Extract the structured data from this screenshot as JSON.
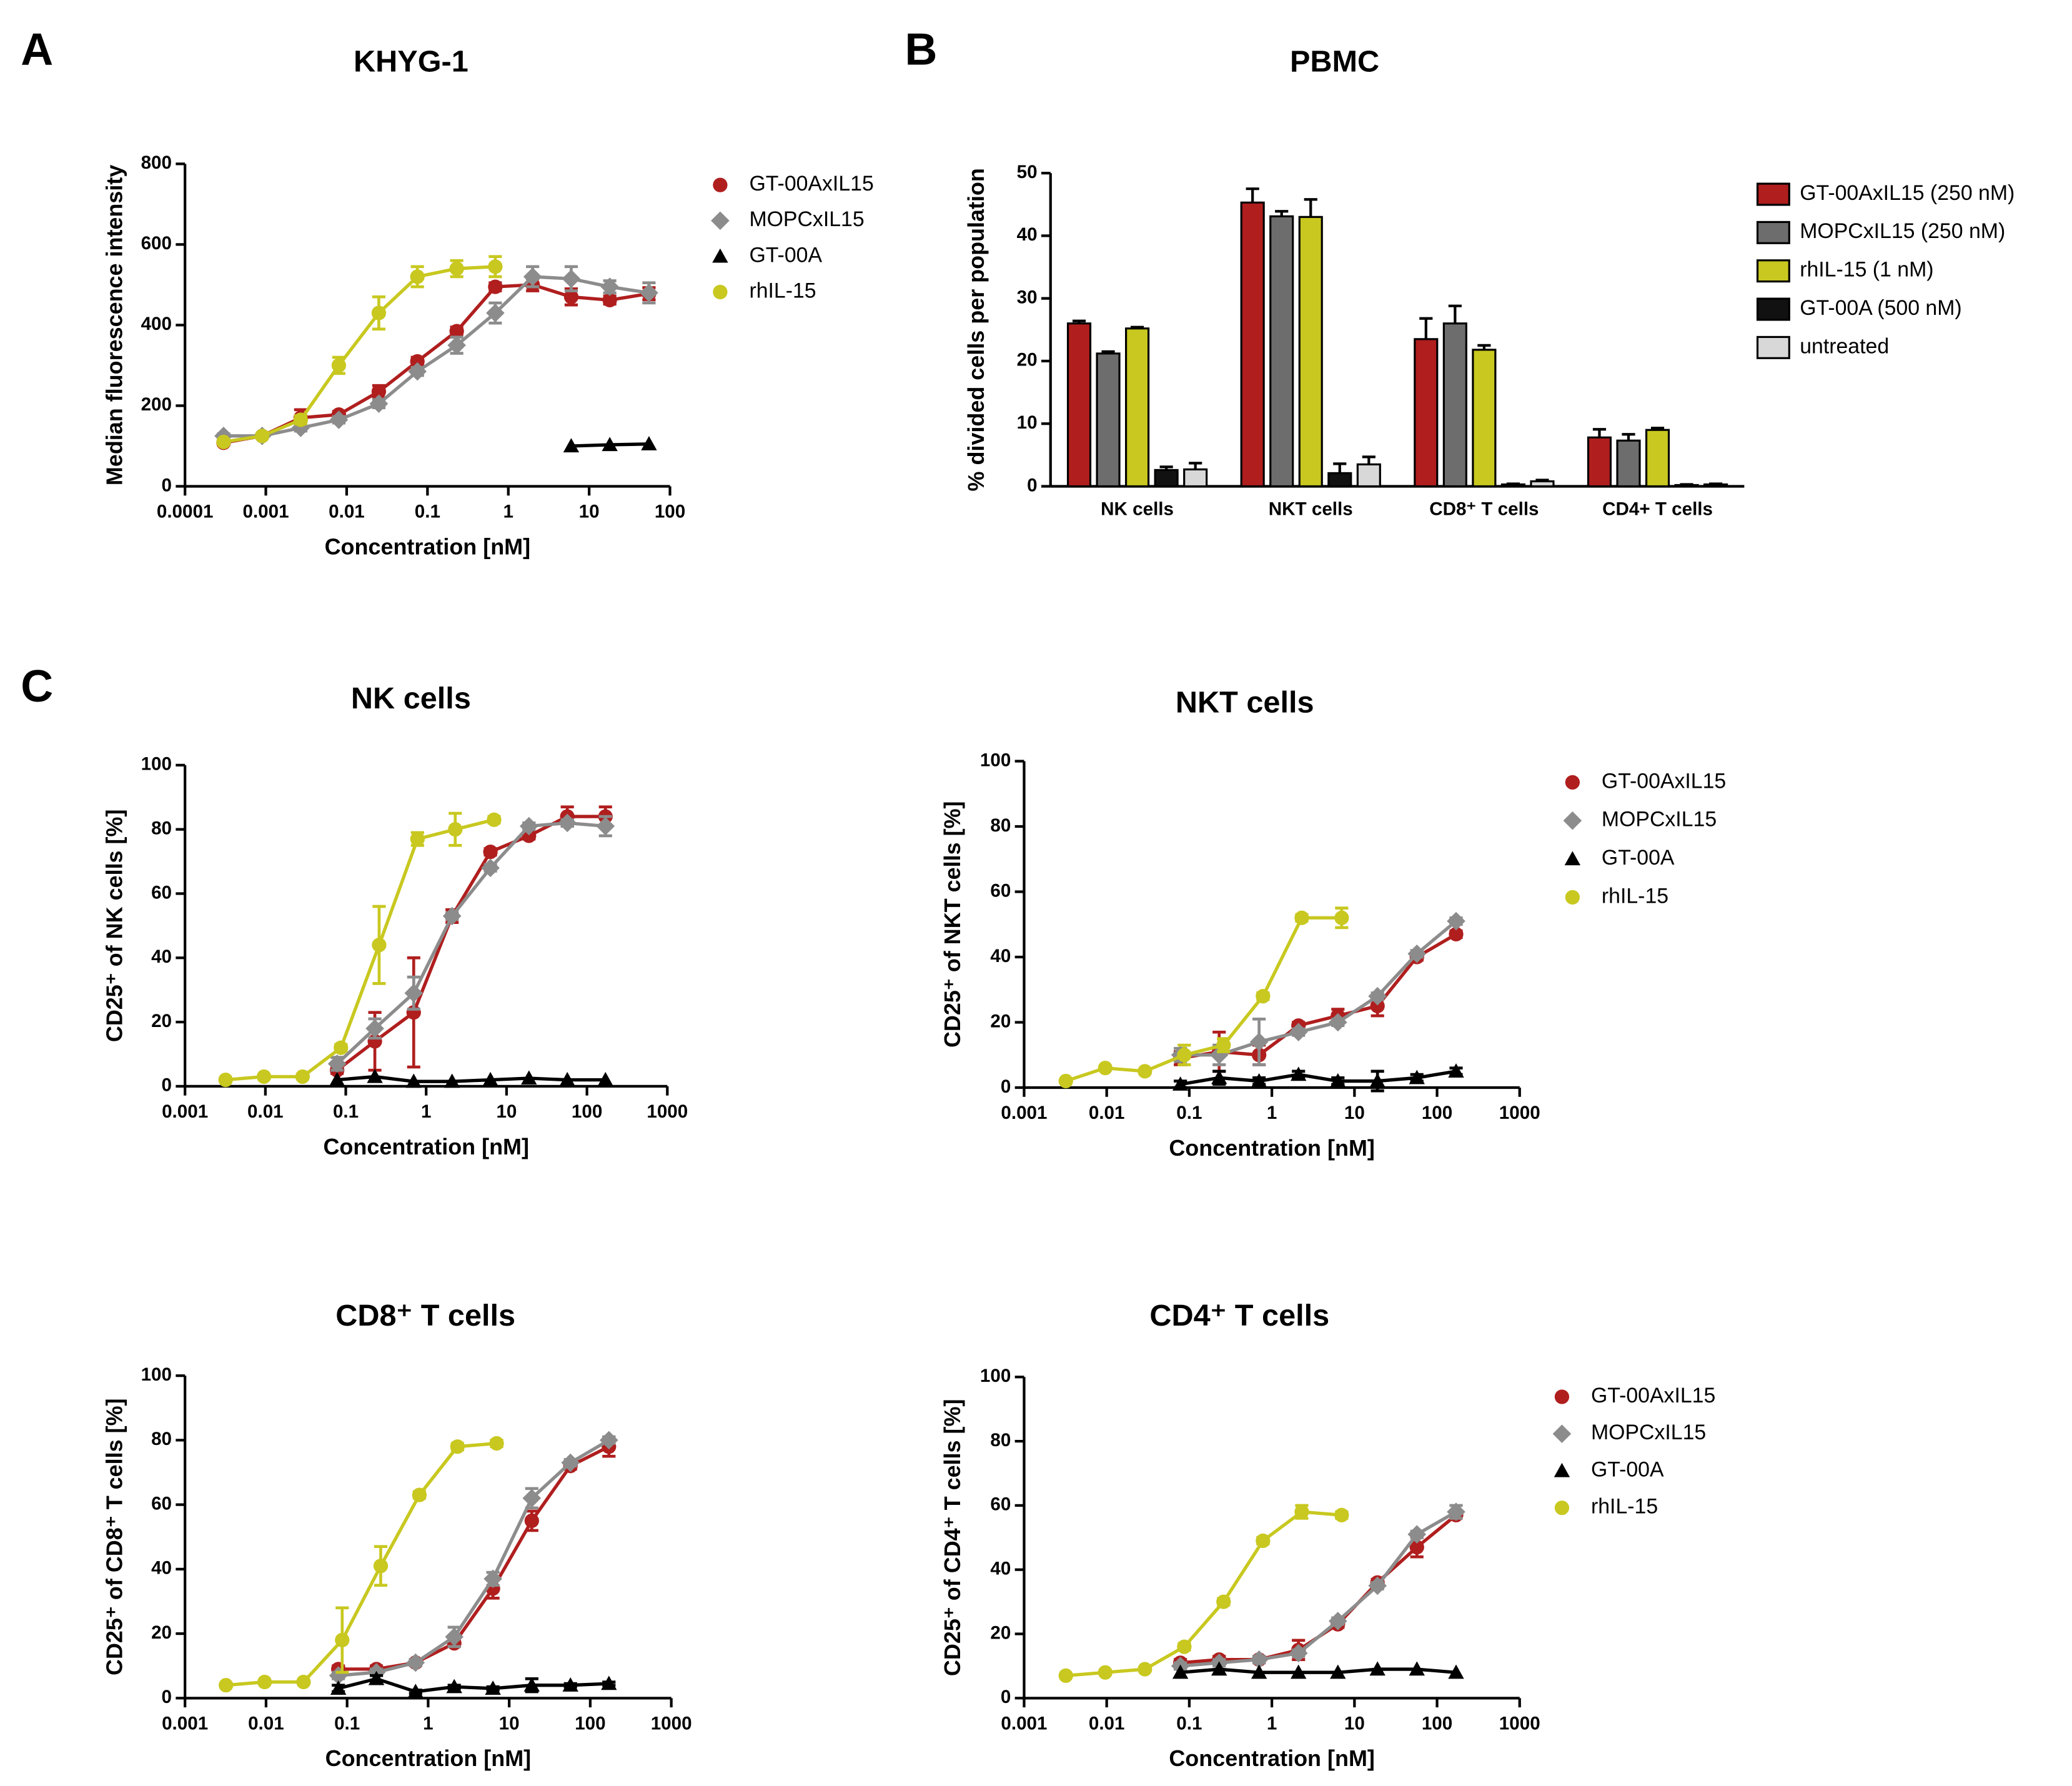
{
  "chart_data": [
    {
      "type": "scatter",
      "panel_label": "A",
      "title": "KHYG-1",
      "x_label": "Concentration [nM]",
      "y_label": "Median fluorescence intensity",
      "xlog": true,
      "xlim": [
        0.0001,
        100
      ],
      "xticks": [
        0.0001,
        0.001,
        0.01,
        0.1,
        1,
        10,
        100
      ],
      "ylim": [
        0,
        800
      ],
      "yticks": [
        0,
        200,
        400,
        600,
        800
      ],
      "legend": "right",
      "series": [
        {
          "name": "GT-00AxIL15",
          "color": "#b01e1e",
          "marker": "circle",
          "x": [
            0.0003,
            0.0009,
            0.0027,
            0.008,
            0.025,
            0.075,
            0.23,
            0.69,
            2,
            6,
            18,
            55
          ],
          "values": [
            108,
            125,
            170,
            178,
            235,
            310,
            385,
            495,
            500,
            470,
            462,
            478
          ],
          "errors": [
            5,
            5,
            20,
            8,
            15,
            10,
            10,
            10,
            15,
            20,
            10,
            15
          ]
        },
        {
          "name": "MOPCxIL15",
          "color": "#8c8c8c",
          "marker": "diamond",
          "x": [
            0.0003,
            0.0009,
            0.0027,
            0.008,
            0.025,
            0.075,
            0.23,
            0.69,
            2,
            6,
            18,
            55
          ],
          "values": [
            125,
            125,
            145,
            165,
            205,
            285,
            350,
            430,
            520,
            515,
            495,
            480
          ],
          "errors": [
            5,
            5,
            8,
            8,
            10,
            10,
            20,
            25,
            25,
            30,
            15,
            25
          ]
        },
        {
          "name": "GT-00A",
          "color": "#000000",
          "marker": "triangle",
          "x": [
            6,
            18,
            55
          ],
          "values": [
            100,
            103,
            105
          ]
        },
        {
          "name": "rhIL-15",
          "color": "#c8c820",
          "marker": "circle",
          "x": [
            0.0003,
            0.0009,
            0.0027,
            0.008,
            0.025,
            0.075,
            0.23,
            0.69
          ],
          "values": [
            110,
            125,
            165,
            300,
            430,
            520,
            540,
            545
          ],
          "errors": [
            5,
            5,
            10,
            20,
            40,
            25,
            20,
            25
          ]
        }
      ]
    },
    {
      "type": "bar",
      "panel_label": "B",
      "title": "PBMC",
      "y_label": "% divided cells per population",
      "categories": [
        "NK cells",
        "NKT cells",
        "CD8⁺ T cells",
        "CD4+ T cells"
      ],
      "ylim": [
        0,
        50
      ],
      "yticks": [
        0,
        10,
        20,
        30,
        40,
        50
      ],
      "legend": "right",
      "series": [
        {
          "name": "GT-00AxIL15 (250 nM)",
          "color": "#b01e1e",
          "values": [
            26,
            45.3,
            23.5,
            7.8
          ],
          "errors": [
            0.4,
            2.2,
            3.3,
            1.3
          ]
        },
        {
          "name": "MOPCxIL15 (250 nM)",
          "color": "#6d6d6d",
          "values": [
            21.2,
            43.1,
            26,
            7.3
          ],
          "errors": [
            0.3,
            0.8,
            2.8,
            1
          ]
        },
        {
          "name": "rhIL-15 (1 nM)",
          "color": "#c8c820",
          "values": [
            25.2,
            43,
            21.8,
            9
          ],
          "errors": [
            0.2,
            2.8,
            0.7,
            0.3
          ]
        },
        {
          "name": "GT-00A (500 nM)",
          "color": "#111111",
          "values": [
            2.6,
            2.1,
            0.3,
            0.2
          ],
          "errors": [
            0.5,
            1.5,
            0.1,
            0.1
          ]
        },
        {
          "name": "untreated",
          "color": "#d8d8d8",
          "values": [
            2.7,
            3.5,
            0.8,
            0.3
          ],
          "errors": [
            1,
            1.2,
            0.2,
            0.1
          ]
        }
      ]
    },
    {
      "type": "scatter",
      "panel_label": "C",
      "title": "NK cells",
      "x_label": "Concentration [nM]",
      "y_label": "CD25⁺ of NK cells [%]",
      "xlog": true,
      "xlim": [
        0.001,
        1000
      ],
      "xticks": [
        0.001,
        0.01,
        0.1,
        1,
        10,
        100,
        1000
      ],
      "ylim": [
        0,
        100
      ],
      "yticks": [
        0,
        20,
        40,
        60,
        80,
        100
      ],
      "series": [
        {
          "name": "GT-00AxIL15",
          "color": "#b01e1e",
          "marker": "circle",
          "x": [
            0.078,
            0.23,
            0.7,
            2.1,
            6.3,
            19,
            57,
            170
          ],
          "values": [
            5,
            14,
            23,
            53,
            73,
            78,
            84,
            84
          ],
          "errors": [
            1,
            9,
            17,
            2,
            1,
            1,
            3,
            3
          ]
        },
        {
          "name": "MOPCxIL15",
          "color": "#8c8c8c",
          "marker": "diamond",
          "x": [
            0.078,
            0.23,
            0.7,
            2.1,
            6.3,
            19,
            57,
            170
          ],
          "values": [
            7,
            18,
            29,
            53,
            68,
            81,
            82,
            81
          ],
          "errors": [
            2,
            3,
            5,
            1,
            1,
            1,
            1,
            3
          ]
        },
        {
          "name": "GT-00A",
          "color": "#000000",
          "marker": "triangle",
          "x": [
            0.078,
            0.23,
            0.7,
            2.1,
            6.3,
            19,
            57,
            170
          ],
          "values": [
            2,
            3,
            1.5,
            1.5,
            2,
            2.5,
            2,
            2
          ]
        },
        {
          "name": "rhIL-15",
          "color": "#c8c820",
          "marker": "circle",
          "x": [
            0.0032,
            0.0096,
            0.029,
            0.087,
            0.26,
            0.78,
            2.3,
            7
          ],
          "values": [
            2,
            3,
            3,
            12,
            44,
            77,
            80,
            83
          ],
          "errors": [
            0.5,
            0.5,
            0.5,
            1,
            12,
            2,
            5,
            1
          ]
        }
      ]
    },
    {
      "type": "scatter",
      "title": "NKT cells",
      "x_label": "Concentration [nM]",
      "y_label": "CD25⁺ of NKT cells [%]",
      "xlog": true,
      "xlim": [
        0.001,
        1000
      ],
      "xticks": [
        0.001,
        0.01,
        0.1,
        1,
        10,
        100,
        1000
      ],
      "ylim": [
        0,
        100
      ],
      "yticks": [
        0,
        20,
        40,
        60,
        80,
        100
      ],
      "legend": "right",
      "series": [
        {
          "name": "GT-00AxIL15",
          "color": "#b01e1e",
          "marker": "circle",
          "x": [
            0.078,
            0.23,
            0.7,
            2.1,
            6.3,
            19,
            57,
            170
          ],
          "values": [
            9,
            11,
            10,
            19,
            22,
            25,
            40,
            47
          ],
          "errors": [
            2,
            6,
            3,
            1,
            2,
            3,
            1,
            1
          ]
        },
        {
          "name": "MOPCxIL15",
          "color": "#8c8c8c",
          "marker": "diamond",
          "x": [
            0.078,
            0.23,
            0.7,
            2.1,
            6.3,
            19,
            57,
            170
          ],
          "values": [
            10,
            10,
            14,
            17,
            20,
            28,
            41,
            51
          ],
          "errors": [
            2,
            3,
            7,
            1,
            1,
            1,
            1,
            1
          ]
        },
        {
          "name": "GT-00A",
          "color": "#000000",
          "marker": "triangle",
          "x": [
            0.078,
            0.23,
            0.7,
            2.1,
            6.3,
            19,
            57,
            170
          ],
          "values": [
            1,
            3,
            2,
            4,
            2,
            2,
            3,
            5
          ],
          "errors": [
            1,
            2,
            1,
            1,
            1,
            3,
            1,
            1
          ]
        },
        {
          "name": "rhIL-15",
          "color": "#c8c820",
          "marker": "circle",
          "x": [
            0.0032,
            0.0096,
            0.029,
            0.087,
            0.26,
            0.78,
            2.3,
            7
          ],
          "values": [
            2,
            6,
            5,
            10,
            13,
            28,
            52,
            52
          ],
          "errors": [
            0.5,
            0.5,
            0.5,
            3,
            2,
            1,
            1,
            3
          ]
        }
      ]
    },
    {
      "type": "scatter",
      "title": "CD8⁺ T cells",
      "x_label": "Concentration [nM]",
      "y_label": "CD25⁺ of CD8⁺ T cells [%]",
      "xlog": true,
      "xlim": [
        0.001,
        1000
      ],
      "xticks": [
        0.001,
        0.01,
        0.1,
        1,
        10,
        100,
        1000
      ],
      "ylim": [
        0,
        100
      ],
      "yticks": [
        0,
        20,
        40,
        60,
        80,
        100
      ],
      "series": [
        {
          "name": "GT-00AxIL15",
          "color": "#b01e1e",
          "marker": "circle",
          "x": [
            0.078,
            0.23,
            0.7,
            2.1,
            6.3,
            19,
            57,
            170
          ],
          "values": [
            9,
            9,
            11,
            17,
            34,
            55,
            72,
            78
          ],
          "errors": [
            1,
            1,
            1,
            1,
            3,
            3,
            1,
            3
          ]
        },
        {
          "name": "MOPCxIL15",
          "color": "#8c8c8c",
          "marker": "diamond",
          "x": [
            0.078,
            0.23,
            0.7,
            2.1,
            6.3,
            19,
            57,
            170
          ],
          "values": [
            7,
            8,
            11,
            19,
            37,
            62,
            73,
            80
          ],
          "errors": [
            1,
            1,
            1,
            3,
            2,
            3,
            1,
            1
          ]
        },
        {
          "name": "GT-00A",
          "color": "#000000",
          "marker": "triangle",
          "x": [
            0.078,
            0.23,
            0.7,
            2.1,
            6.3,
            19,
            57,
            170
          ],
          "values": [
            3,
            6,
            2,
            3.5,
            3,
            4,
            4,
            4.5
          ],
          "errors": [
            1,
            1,
            0.5,
            0.5,
            0.5,
            2,
            0.5,
            0.5
          ]
        },
        {
          "name": "rhIL-15",
          "color": "#c8c820",
          "marker": "circle",
          "x": [
            0.0032,
            0.0096,
            0.029,
            0.087,
            0.26,
            0.78,
            2.3,
            7
          ],
          "values": [
            4,
            5,
            5,
            18,
            41,
            63,
            78,
            79
          ],
          "errors": [
            0.5,
            0.5,
            0.5,
            10,
            6,
            1,
            1,
            1
          ]
        }
      ]
    },
    {
      "type": "scatter",
      "title": "CD4⁺ T cells",
      "x_label": "Concentration [nM]",
      "y_label": "CD25⁺ of CD4⁺ T cells [%]",
      "xlog": true,
      "xlim": [
        0.001,
        1000
      ],
      "xticks": [
        0.001,
        0.01,
        0.1,
        1,
        10,
        100,
        1000
      ],
      "ylim": [
        0,
        100
      ],
      "yticks": [
        0,
        20,
        40,
        60,
        80,
        100
      ],
      "legend": "right",
      "series": [
        {
          "name": "GT-00AxIL15",
          "color": "#b01e1e",
          "marker": "circle",
          "x": [
            0.078,
            0.23,
            0.7,
            2.1,
            6.3,
            19,
            57,
            170
          ],
          "values": [
            11,
            12,
            12,
            15,
            23,
            36,
            47,
            57
          ],
          "errors": [
            1,
            1,
            1,
            3,
            1,
            1,
            3,
            1
          ]
        },
        {
          "name": "MOPCxIL15",
          "color": "#8c8c8c",
          "marker": "diamond",
          "x": [
            0.078,
            0.23,
            0.7,
            2.1,
            6.3,
            19,
            57,
            170
          ],
          "values": [
            10,
            11,
            12,
            14,
            24,
            35,
            51,
            58
          ],
          "errors": [
            1,
            1,
            1,
            1,
            1,
            1,
            1,
            2
          ]
        },
        {
          "name": "GT-00A",
          "color": "#000000",
          "marker": "triangle",
          "x": [
            0.078,
            0.23,
            0.7,
            2.1,
            6.3,
            19,
            57,
            170
          ],
          "values": [
            8,
            9,
            8,
            8,
            8,
            9,
            9,
            8
          ]
        },
        {
          "name": "rhIL-15",
          "color": "#c8c820",
          "marker": "circle",
          "x": [
            0.0032,
            0.0096,
            0.029,
            0.087,
            0.26,
            0.78,
            2.3,
            7
          ],
          "values": [
            7,
            8,
            9,
            16,
            30,
            49,
            58,
            57
          ],
          "errors": [
            0.5,
            0.5,
            0.5,
            1,
            1,
            1,
            2,
            1
          ]
        }
      ]
    }
  ]
}
